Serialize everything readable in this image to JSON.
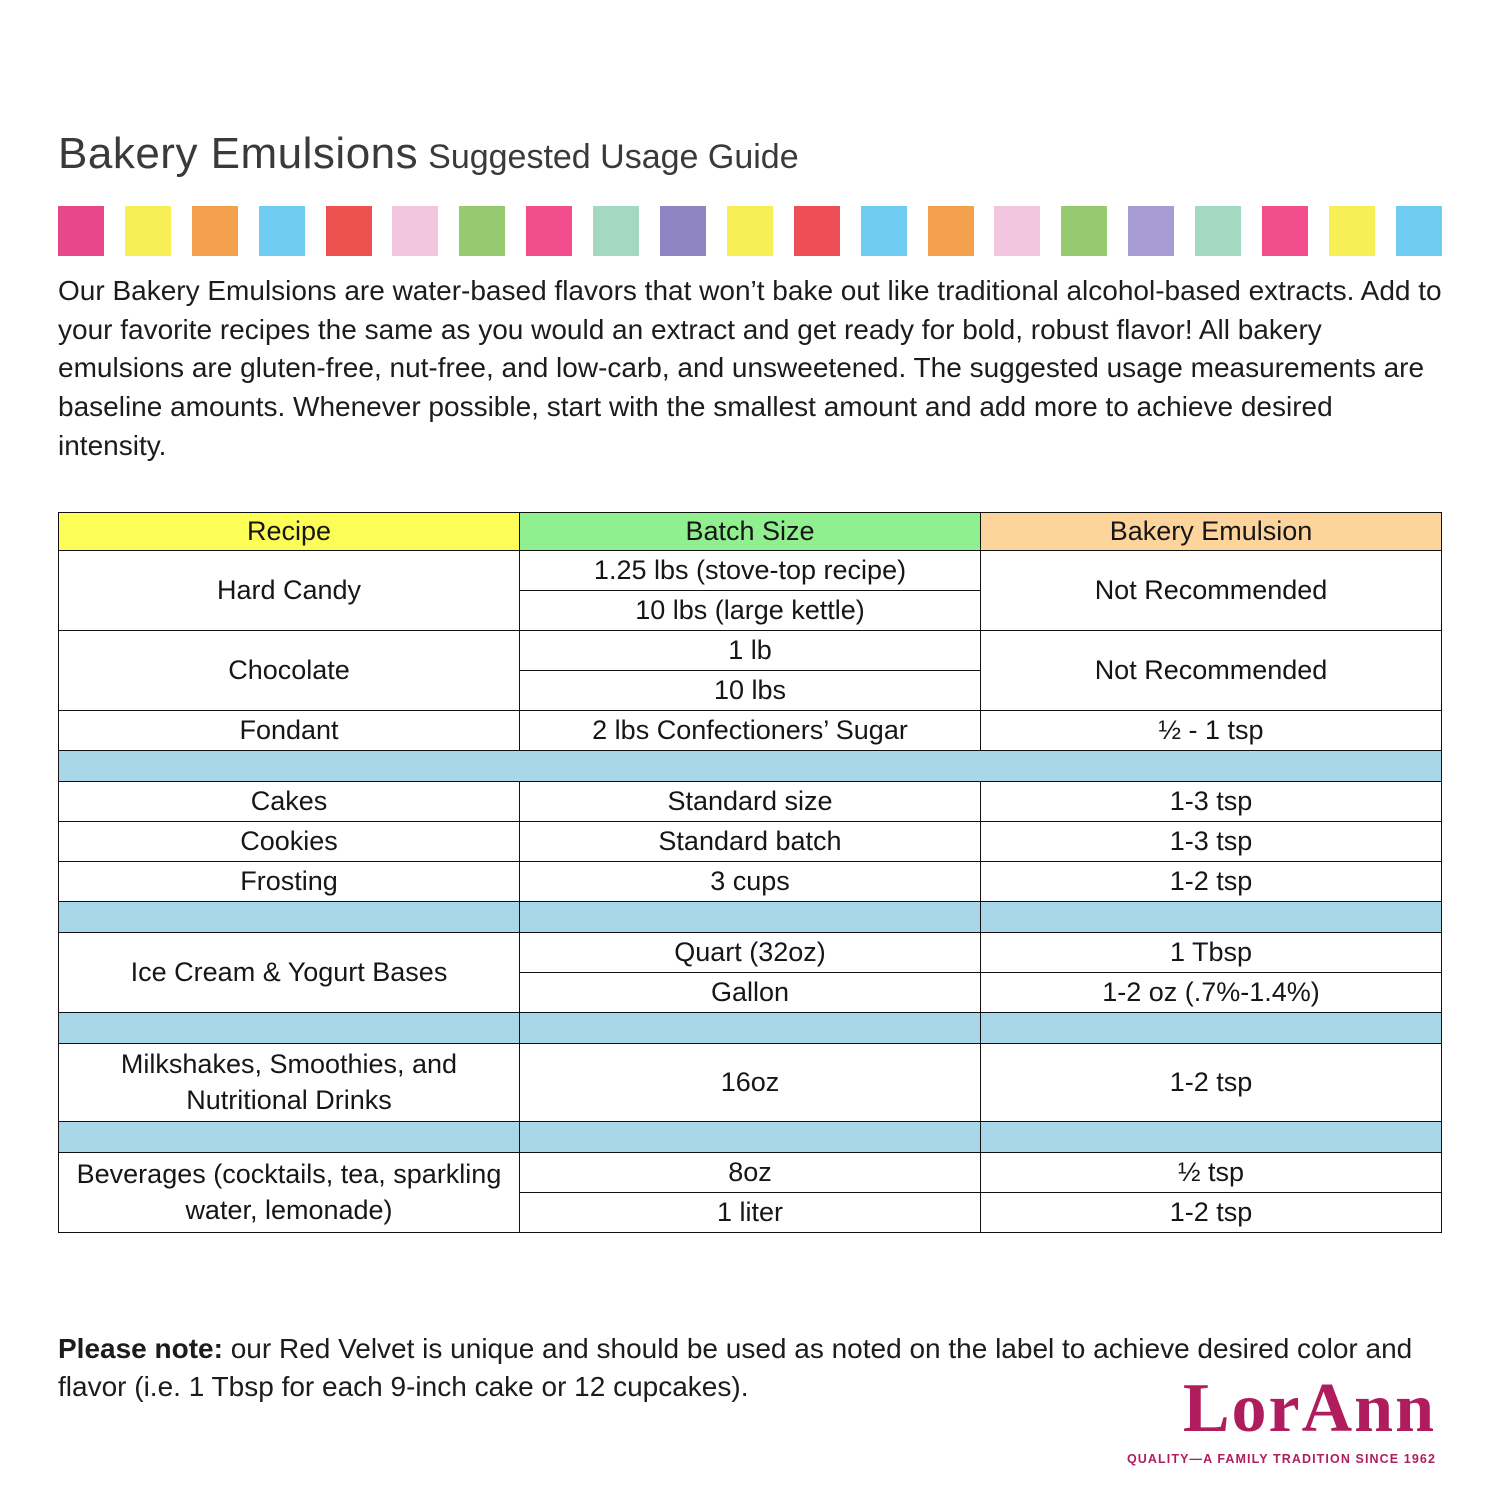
{
  "page": {
    "title_main": "Bakery Emulsions",
    "title_sub": "Suggested Usage Guide",
    "intro": "Our Bakery Emulsions are water-based flavors that won’t bake out like traditional alcohol-based extracts. Add to your favorite recipes the same as you would an extract and get ready for bold, robust flavor! All bakery emulsions are gluten-free, nut-free, and low-carb, and unsweetened. The suggested usage measurements are baseline amounts. Whenever possible, start with the smallest amount and add more to achieve desired intensity.",
    "note_label": "Please note:",
    "note_text": " our Red Velvet is unique and should be used as noted on the label to achieve desired color and flavor (i.e. 1 Tbsp for each 9-inch cake or 12 cupcakes)."
  },
  "color_strip": [
    "#e8478a",
    "#f7ef55",
    "#f3a04f",
    "#70cdf1",
    "#ee5250",
    "#f3c6df",
    "#97ca70",
    "#f24e8d",
    "#a4d9c1",
    "#8f85c5",
    "#f7ef55",
    "#ee4f57",
    "#70cdf1",
    "#f3a04f",
    "#f3c6df",
    "#97ca70",
    "#a79bd4",
    "#a4d9c1",
    "#f24e8d",
    "#f7ef55",
    "#70cdf1"
  ],
  "colors": {
    "header_recipe": "#fdfd57",
    "header_batch": "#90ef8e",
    "header_emulsion": "#fcd49c",
    "separator": "#a7d7e8",
    "brand": "#b01d5c"
  },
  "table": {
    "headers": {
      "recipe": "Recipe",
      "batch_size": "Batch Size",
      "bakery_emulsion": "Bakery Emulsion"
    },
    "rows": {
      "hard_candy": {
        "recipe": "Hard Candy",
        "batch1": "1.25 lbs (stove-top recipe)",
        "batch2": "10 lbs (large kettle)",
        "emulsion": "Not Recommended"
      },
      "chocolate": {
        "recipe": "Chocolate",
        "batch1": "1 lb",
        "batch2": "10 lbs",
        "emulsion": "Not Recommended"
      },
      "fondant": {
        "recipe": "Fondant",
        "batch": "2 lbs Confectioners’ Sugar",
        "emulsion": "½ - 1 tsp"
      },
      "cakes": {
        "recipe": "Cakes",
        "batch": "Standard size",
        "emulsion": "1-3 tsp"
      },
      "cookies": {
        "recipe": "Cookies",
        "batch": "Standard batch",
        "emulsion": "1-3 tsp"
      },
      "frosting": {
        "recipe": "Frosting",
        "batch": "3 cups",
        "emulsion": "1-2 tsp"
      },
      "ice_cream": {
        "recipe": "Ice Cream & Yogurt Bases",
        "batch1": "Quart (32oz)",
        "emulsion1": "1 Tbsp",
        "batch2": "Gallon",
        "emulsion2": "1-2 oz (.7%-1.4%)"
      },
      "milkshakes": {
        "recipe": "Milkshakes, Smoothies, and Nutritional Drinks",
        "batch": "16oz",
        "emulsion": "1-2 tsp"
      },
      "beverages": {
        "recipe": "Beverages (cocktails, tea, sparkling water, lemonade)",
        "batch1": "8oz",
        "emulsion1": "½ tsp",
        "batch2": "1 liter",
        "emulsion2": "1-2 tsp"
      }
    }
  },
  "logo": {
    "word": "LorAnn",
    "tagline": "QUALITY—A FAMILY TRADITION SINCE 1962"
  }
}
